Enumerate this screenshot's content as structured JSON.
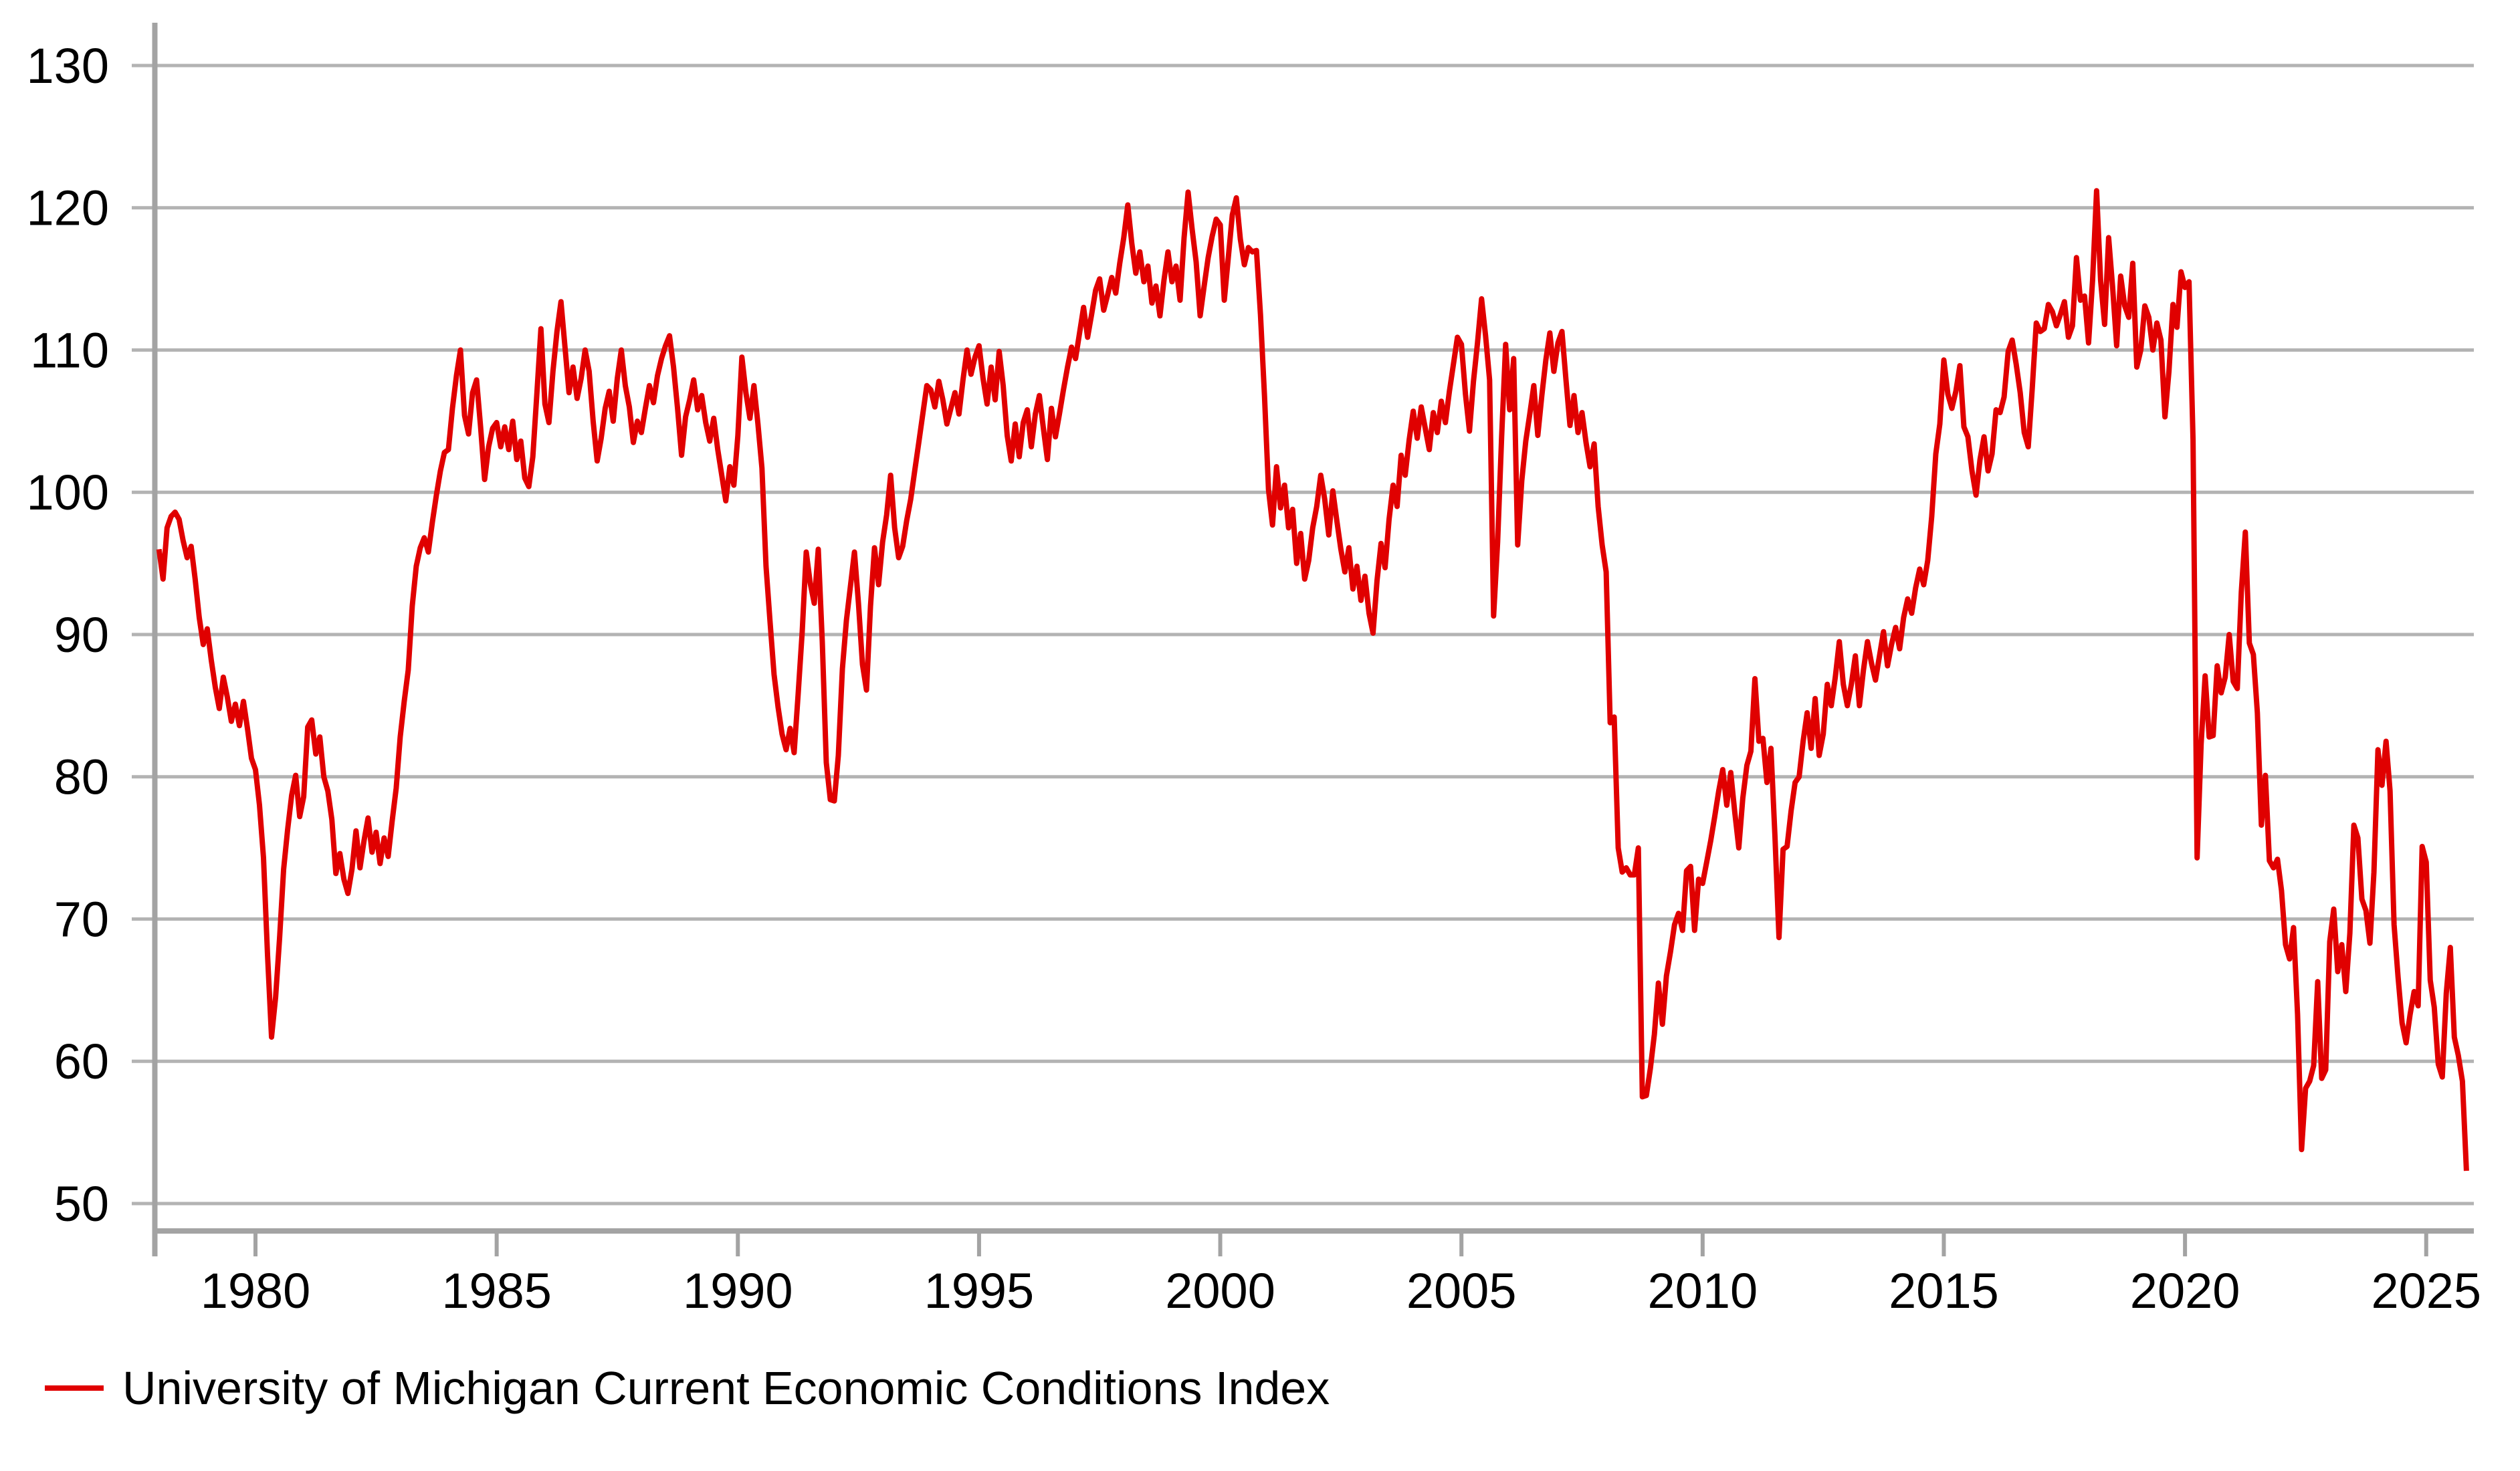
{
  "legend": {
    "label": "University of Michigan Current Economic Conditions Index",
    "color": "#e00000"
  },
  "colors": {
    "background": "#ffffff",
    "grid": "#b3b3b3",
    "axis": "#a3a3a3",
    "text": "#000000",
    "series": "#e00000"
  },
  "chart_data": {
    "type": "line",
    "title": "",
    "xlabel": "",
    "ylabel": "",
    "legend_position": "bottom-left",
    "grid": {
      "horizontal": true,
      "vertical": false
    },
    "x_axis": {
      "tick_years": [
        1980,
        1985,
        1990,
        1995,
        2000,
        2005,
        2010,
        2015,
        2020,
        2025
      ],
      "range_years": [
        1977.91,
        2025.99
      ]
    },
    "y_axis": {
      "ticks": [
        50,
        60,
        70,
        80,
        90,
        100,
        110,
        120,
        130
      ],
      "range": [
        48.1,
        133.0
      ]
    },
    "series": [
      {
        "name": "University of Michigan Current Economic Conditions Index",
        "color": "#e00000",
        "start": "1978-01",
        "frequency": "monthly",
        "values": [
          96.0,
          93.9,
          97.5,
          98.3,
          98.6,
          98.1,
          96.6,
          95.4,
          96.2,
          93.9,
          91.2,
          89.3,
          90.4,
          88.2,
          86.3,
          84.8,
          87.0,
          85.6,
          83.9,
          85.1,
          83.6,
          85.3,
          83.4,
          81.3,
          80.5,
          78.0,
          74.3,
          67.5,
          61.7,
          64.5,
          68.7,
          73.5,
          76.3,
          78.7,
          80.1,
          77.2,
          78.6,
          83.5,
          84.0,
          81.6,
          82.8,
          80.0,
          79.0,
          77.0,
          73.2,
          74.6,
          72.8,
          71.8,
          73.5,
          76.2,
          73.6,
          75.5,
          77.1,
          74.7,
          76.1,
          73.9,
          75.7,
          74.4,
          76.9,
          79.2,
          82.8,
          85.3,
          87.5,
          92.0,
          94.8,
          96.1,
          96.8,
          95.8,
          97.9,
          99.8,
          101.5,
          102.8,
          103.0,
          105.9,
          108.2,
          110.0,
          105.4,
          104.1,
          107.0,
          107.9,
          104.6,
          100.9,
          103.2,
          104.5,
          104.9,
          103.2,
          104.6,
          103.0,
          105.0,
          102.3,
          103.6,
          101.0,
          100.4,
          102.5,
          106.9,
          111.5,
          106.2,
          104.9,
          108.5,
          111.3,
          113.4,
          110.2,
          107.0,
          108.8,
          106.6,
          108.0,
          110.0,
          108.5,
          105.0,
          102.2,
          103.8,
          105.9,
          107.1,
          105.0,
          108.0,
          110.0,
          107.5,
          106.0,
          103.5,
          105.0,
          104.2,
          105.9,
          107.5,
          106.3,
          108.2,
          109.4,
          110.3,
          111.0,
          108.8,
          105.9,
          102.6,
          105.3,
          106.5,
          107.9,
          105.8,
          106.8,
          104.9,
          103.6,
          105.2,
          103.0,
          101.2,
          99.4,
          101.8,
          100.5,
          104.0,
          109.5,
          107.0,
          105.2,
          107.5,
          104.8,
          101.7,
          94.8,
          90.9,
          87.2,
          84.9,
          83.0,
          81.9,
          83.4,
          81.7,
          85.8,
          90.2,
          95.8,
          93.6,
          92.2,
          96.0,
          89.5,
          81.0,
          78.4,
          78.3,
          81.5,
          87.6,
          91.0,
          93.4,
          95.8,
          92.2,
          87.9,
          86.1,
          92.0,
          96.1,
          93.5,
          96.5,
          98.4,
          101.2,
          97.5,
          95.4,
          96.2,
          98.0,
          99.5,
          101.5,
          103.5,
          105.5,
          107.5,
          107.2,
          106.0,
          107.8,
          106.5,
          104.8,
          105.9,
          107.0,
          105.5,
          107.9,
          110.0,
          108.3,
          109.5,
          110.3,
          108.0,
          106.2,
          108.8,
          106.5,
          109.9,
          107.5,
          104.0,
          102.2,
          104.8,
          102.5,
          104.9,
          105.8,
          103.2,
          105.5,
          106.8,
          104.5,
          102.3,
          105.9,
          103.9,
          105.5,
          107.2,
          108.8,
          110.2,
          109.4,
          111.2,
          113.0,
          110.9,
          112.5,
          114.2,
          115.0,
          112.8,
          113.9,
          115.1,
          114.0,
          116.1,
          117.9,
          120.2,
          117.5,
          115.4,
          116.9,
          114.8,
          115.9,
          113.3,
          114.5,
          112.4,
          114.9,
          116.9,
          114.8,
          115.9,
          113.5,
          117.9,
          121.1,
          118.5,
          116.2,
          112.4,
          114.5,
          116.5,
          118.0,
          119.2,
          118.8,
          113.5,
          116.5,
          119.5,
          120.7,
          117.8,
          116.0,
          117.2,
          116.9,
          117.0,
          112.5,
          106.8,
          100.2,
          97.7,
          101.8,
          98.9,
          100.5,
          97.5,
          98.8,
          95.0,
          97.1,
          93.9,
          95.2,
          97.5,
          99.0,
          101.2,
          99.5,
          97.0,
          100.1,
          98.0,
          96.0,
          94.4,
          96.1,
          93.2,
          94.8,
          92.4,
          94.1,
          91.5,
          90.1,
          93.8,
          96.4,
          94.7,
          98.1,
          100.5,
          99.0,
          102.6,
          101.2,
          103.7,
          105.7,
          103.8,
          106.0,
          104.5,
          103.0,
          105.6,
          104.2,
          106.4,
          104.9,
          107.1,
          109.0,
          110.9,
          110.4,
          106.9,
          104.3,
          107.8,
          110.5,
          113.6,
          111.0,
          107.9,
          91.3,
          96.5,
          103.9,
          110.4,
          105.8,
          109.4,
          96.3,
          100.8,
          103.6,
          105.5,
          107.5,
          104.0,
          106.8,
          109.3,
          111.2,
          108.5,
          110.5,
          111.3,
          107.9,
          104.7,
          106.8,
          104.2,
          105.6,
          103.5,
          101.8,
          103.4,
          99.0,
          96.3,
          94.4,
          83.8,
          84.2,
          75.0,
          73.3,
          73.6,
          73.1,
          73.1,
          75.0,
          57.5,
          57.6,
          59.5,
          61.9,
          65.5,
          62.6,
          66.0,
          67.7,
          69.6,
          70.4,
          69.2,
          73.4,
          73.7,
          69.2,
          72.8,
          72.5,
          74.0,
          75.5,
          77.2,
          79.0,
          80.5,
          78.0,
          80.3,
          77.5,
          75.0,
          78.5,
          80.8,
          81.8,
          86.9,
          82.5,
          82.7,
          79.6,
          82.0,
          75.8,
          68.7,
          74.9,
          75.1,
          77.6,
          79.6,
          80.0,
          82.5,
          84.5,
          82.0,
          85.5,
          81.5,
          83.0,
          86.5,
          85.0,
          87.0,
          89.5,
          86.5,
          85.0,
          86.5,
          88.5,
          85.0,
          87.5,
          89.5,
          88.0,
          86.8,
          88.5,
          90.2,
          87.8,
          89.3,
          90.5,
          89.0,
          91.2,
          92.5,
          91.5,
          93.3,
          94.6,
          93.5,
          95.2,
          98.3,
          102.7,
          104.8,
          109.3,
          106.9,
          105.9,
          107.1,
          108.9,
          104.6,
          103.9,
          101.5,
          99.8,
          102.3,
          103.9,
          101.5,
          102.7,
          105.8,
          105.6,
          106.7,
          109.9,
          110.7,
          109.0,
          107.0,
          104.2,
          103.2,
          107.3,
          111.9,
          111.3,
          111.5,
          113.2,
          112.7,
          111.7,
          112.5,
          113.4,
          110.9,
          111.7,
          116.5,
          113.5,
          113.8,
          110.5,
          114.9,
          121.2,
          114.9,
          111.8,
          117.9,
          114.4,
          110.3,
          115.2,
          113.1,
          112.3,
          116.1,
          108.8,
          110.0,
          113.1,
          112.3,
          110.0,
          111.9,
          110.7,
          105.3,
          108.5,
          113.2,
          111.6,
          115.5,
          114.4,
          114.8,
          103.7,
          74.3,
          82.3,
          87.1,
          82.8,
          82.9,
          87.8,
          85.9,
          87.0,
          90.0,
          86.7,
          86.2,
          93.0,
          97.2,
          89.4,
          88.6,
          84.5,
          76.6,
          80.1,
          74.1,
          73.6,
          74.2,
          72.0,
          68.2,
          67.2,
          69.4,
          63.3,
          53.8,
          58.1,
          58.6,
          59.7,
          65.6,
          58.8,
          59.4,
          68.4,
          70.7,
          66.3,
          68.2,
          64.9,
          69.0,
          76.6,
          75.7,
          71.4,
          70.6,
          68.3,
          73.3,
          81.9,
          79.4,
          82.5,
          79.0,
          69.6,
          65.9,
          62.7,
          61.3,
          63.3,
          64.9,
          63.9,
          75.1,
          74.0,
          65.7,
          63.8,
          59.8,
          58.9,
          64.8,
          68.0,
          61.7,
          60.4,
          58.6,
          52.3
        ]
      }
    ]
  }
}
